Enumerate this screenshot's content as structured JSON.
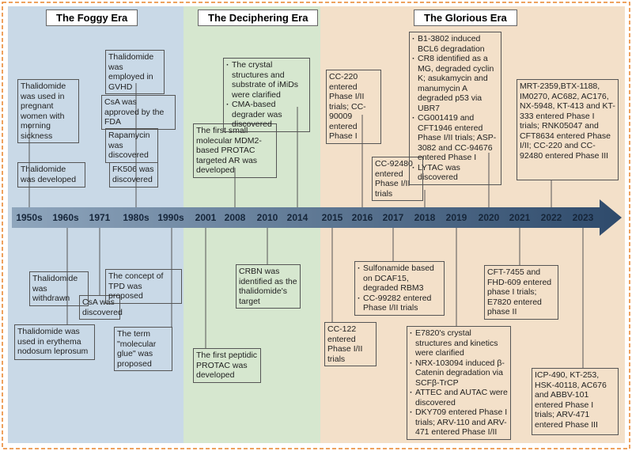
{
  "eras": [
    {
      "title": "The Foggy Era"
    },
    {
      "title": "The Deciphering Era"
    },
    {
      "title": "The Glorious Era"
    }
  ],
  "years": [
    "1950s",
    "1960s",
    "1971",
    "1980s",
    "1990s",
    "2001",
    "2008",
    "2010",
    "2014",
    "2015",
    "2016",
    "2017",
    "2018",
    "2019",
    "2020",
    "2021",
    "2022",
    "2023"
  ],
  "events": [
    {
      "text": "Thalidomide was used in pregnant women with morning sickness"
    },
    {
      "text": "Thalidomide was developed"
    },
    {
      "text": "Thalidomide was employed in GVHD"
    },
    {
      "text": "CsA was approved by the FDA"
    },
    {
      "text": "Rapamycin was discovered"
    },
    {
      "text": "FK506 was discovered"
    },
    {
      "text": "The first small molecular MDM2-based PROTAC targeted AR was developed"
    },
    {
      "items": [
        "The crystal structures and substrate of iMiDs were clarified",
        "CMA-based degrader was discovered"
      ]
    },
    {
      "text": "CC-220 entered Phase I/II trials; CC-90009 entered Phase I"
    },
    {
      "text": "CC-92480 entered Phase I/II trials"
    },
    {
      "items": [
        "B1-3802 induced BCL6 degradation",
        "CR8 identified as a MG, degraded cyclin K; asukamycin and manumycin A degraded p53 via UBR7",
        "CG001419 and CFT1946 entered Phase I/II trials; ASP-3082 and CC-94676 entered Phase I",
        "LYTAC was discovered"
      ]
    },
    {
      "text": "MRT-2359,BTX-1188, IM0270, AC682, AC176, NX-5948, KT-413 and KT-333 entered Phase I trials; RNK05047 and CFT8634 entered Phase I/II; CC-220 and CC-92480 entered Phase III"
    },
    {
      "text": "Thalidomide was withdrawn"
    },
    {
      "text": "Thalidomide was used in erythema nodosum leprosum"
    },
    {
      "text": "CsA was discovered"
    },
    {
      "text": "The concept of TPD was proposed"
    },
    {
      "text": "The term \"molecular glue\" was proposed"
    },
    {
      "text": "CRBN was identified as the thalidomide's target"
    },
    {
      "text": "The first peptidic PROTAC was developed"
    },
    {
      "text": "CC-122 entered Phase I/II trials"
    },
    {
      "items": [
        "Sulfonamide based on DCAF15, degraded RBM3",
        "CC-99282 entered Phase I/II trials"
      ]
    },
    {
      "items": [
        "E7820's crystal structures and kinetics were clarified",
        "NRX-103094 induced β-Catenin degradation via SCFβ-TrCP",
        "ATTEC and AUTAC were discovered",
        "DKY709 entered Phase I trials; ARV-110 and ARV-471 entered Phase I/II"
      ]
    },
    {
      "text": "CFT-7455 and FHD-609 entered phase I trials; E7820 entered phase II"
    },
    {
      "text": "ICP-490, KT-253, HSK-40118, AC676 and ABBV-101 entered Phase I trials; ARV-471 entered Phase III"
    }
  ]
}
